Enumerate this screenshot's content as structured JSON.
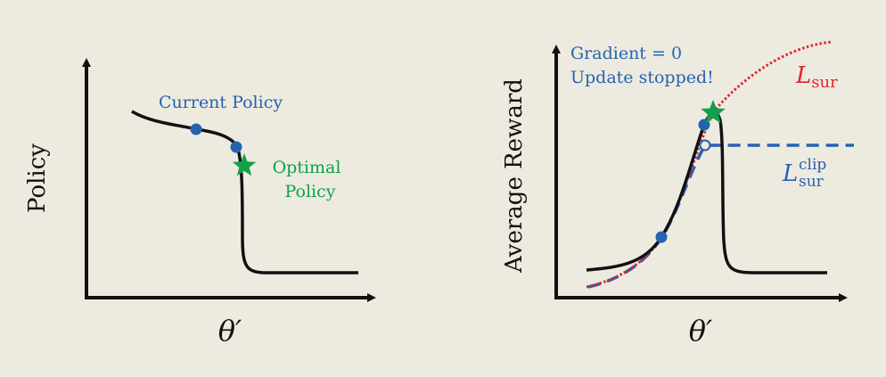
{
  "colors": {
    "background": "#edebe0",
    "axis": "#111111",
    "curve": "#111111",
    "blue": "#2563b0",
    "green": "#12a04a",
    "red": "#e0262e"
  },
  "left_panel": {
    "ylabel": "Policy",
    "xlabel": "θ′",
    "label_current": "Current Policy",
    "label_optimal_line1": "Optimal",
    "label_optimal_line2": "Policy"
  },
  "right_panel": {
    "ylabel": "Average Reward",
    "xlabel": "θ′",
    "note_line1": "Gradient = 0",
    "note_line2": "Update stopped!",
    "lsur_base": "L",
    "lsur_sub": "sur",
    "lclip_base": "L",
    "lclip_sub": "sur",
    "lclip_sup": "clip"
  }
}
